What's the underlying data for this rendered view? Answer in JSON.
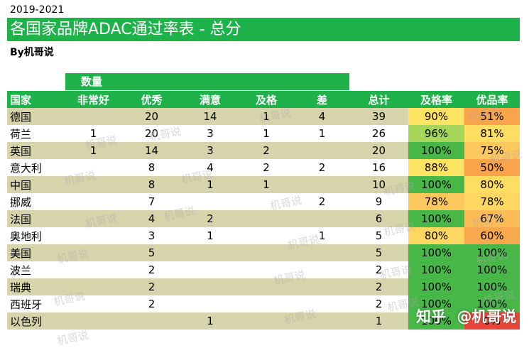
{
  "header": {
    "years": "2019-2021",
    "title": "各国家品牌ADAC通过率表 - 总分",
    "byline": "By机哥说"
  },
  "group_header": "数量",
  "columns": [
    "国家",
    "非常好",
    "优秀",
    "满意",
    "及格",
    "差",
    "总计",
    "及格率",
    "优品率"
  ],
  "rows": [
    {
      "country": "德国",
      "very_good": "",
      "excellent": "20",
      "satisfactory": "14",
      "pass": "1",
      "poor": "4",
      "total": "39",
      "pass_rate": "90%",
      "quality_rate": "51%",
      "pass_color": "#ffe463",
      "quality_color": "#f9a34a"
    },
    {
      "country": "荷兰",
      "very_good": "1",
      "excellent": "20",
      "satisfactory": "3",
      "pass": "1",
      "poor": "1",
      "total": "26",
      "pass_rate": "96%",
      "quality_rate": "81%",
      "pass_color": "#a6d75b",
      "quality_color": "#fede62"
    },
    {
      "country": "英国",
      "very_good": "1",
      "excellent": "14",
      "satisfactory": "3",
      "pass": "2",
      "poor": "",
      "total": "20",
      "pass_rate": "100%",
      "quality_rate": "75%",
      "pass_color": "#47b748",
      "quality_color": "#fdc85d"
    },
    {
      "country": "意大利",
      "very_good": "",
      "excellent": "8",
      "satisfactory": "4",
      "pass": "2",
      "poor": "2",
      "total": "16",
      "pass_rate": "88%",
      "quality_rate": "50%",
      "pass_color": "#ffe463",
      "quality_color": "#f9a34a"
    },
    {
      "country": "中国",
      "very_good": "",
      "excellent": "8",
      "satisfactory": "1",
      "pass": "1",
      "poor": "",
      "total": "10",
      "pass_rate": "100%",
      "quality_rate": "80%",
      "pass_color": "#47b748",
      "quality_color": "#fede62"
    },
    {
      "country": "挪威",
      "very_good": "",
      "excellent": "7",
      "satisfactory": "",
      "pass": "",
      "poor": "2",
      "total": "9",
      "pass_rate": "78%",
      "quality_rate": "78%",
      "pass_color": "#fcc85c",
      "quality_color": "#fdd760"
    },
    {
      "country": "法国",
      "very_good": "",
      "excellent": "4",
      "satisfactory": "2",
      "pass": "",
      "poor": "",
      "total": "6",
      "pass_rate": "100%",
      "quality_rate": "67%",
      "pass_color": "#47b748",
      "quality_color": "#fbbc57"
    },
    {
      "country": "奥地利",
      "very_good": "",
      "excellent": "3",
      "satisfactory": "1",
      "pass": "",
      "poor": "1",
      "total": "5",
      "pass_rate": "80%",
      "quality_rate": "60%",
      "pass_color": "#fdd760",
      "quality_color": "#f9a94d"
    },
    {
      "country": "美国",
      "very_good": "",
      "excellent": "5",
      "satisfactory": "",
      "pass": "",
      "poor": "",
      "total": "5",
      "pass_rate": "100%",
      "quality_rate": "100%",
      "pass_color": "#47b748",
      "quality_color": "#47b748"
    },
    {
      "country": "波兰",
      "very_good": "",
      "excellent": "2",
      "satisfactory": "",
      "pass": "",
      "poor": "",
      "total": "2",
      "pass_rate": "100%",
      "quality_rate": "100%",
      "pass_color": "#47b748",
      "quality_color": "#47b748"
    },
    {
      "country": "瑞典",
      "very_good": "",
      "excellent": "2",
      "satisfactory": "",
      "pass": "",
      "poor": "",
      "total": "2",
      "pass_rate": "100%",
      "quality_rate": "100%",
      "pass_color": "#47b748",
      "quality_color": "#47b748"
    },
    {
      "country": "西班牙",
      "very_good": "",
      "excellent": "2",
      "satisfactory": "",
      "pass": "",
      "poor": "",
      "total": "2",
      "pass_rate": "100%",
      "quality_rate": "100%",
      "pass_color": "#47b748",
      "quality_color": "#47b748"
    },
    {
      "country": "以色列",
      "very_good": "",
      "excellent": "",
      "satisfactory": "1",
      "pass": "",
      "poor": "",
      "total": "1",
      "pass_rate": "100%",
      "quality_rate": "0%",
      "pass_color": "#47b748",
      "quality_color": "#e8463a"
    }
  ],
  "watermark_text": "机哥说",
  "attribution": {
    "site": "知乎",
    "handle": "@机哥说"
  },
  "colors": {
    "header_green": "#1fb24a",
    "stripe": "#d6d4aa"
  }
}
